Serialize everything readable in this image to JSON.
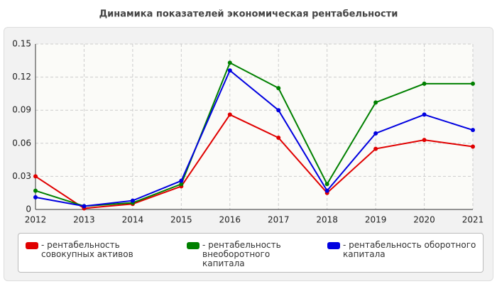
{
  "chart_data": {
    "type": "line",
    "title": "Динамика показателей экономическая рентабельности",
    "categories": [
      "2012",
      "2013",
      "2014",
      "2015",
      "2016",
      "2017",
      "2018",
      "2019",
      "2020",
      "2021"
    ],
    "series": [
      {
        "name": "- рентабельность совокупных активов",
        "color": "#e00000",
        "values": [
          0.03,
          0.001,
          0.005,
          0.021,
          0.086,
          0.065,
          0.015,
          0.055,
          0.063,
          0.057
        ]
      },
      {
        "name": "- рентабельность внеоборотного капитала",
        "color": "#008000",
        "values": [
          0.017,
          0.003,
          0.006,
          0.023,
          0.133,
          0.11,
          0.023,
          0.097,
          0.114,
          0.114
        ]
      },
      {
        "name": "- рентабельность оборотного капитала",
        "color": "#0000e0",
        "values": [
          0.011,
          0.003,
          0.008,
          0.026,
          0.126,
          0.09,
          0.017,
          0.069,
          0.086,
          0.072
        ]
      }
    ],
    "ylim": [
      0,
      0.15
    ],
    "yticks": [
      0,
      0.03,
      0.06,
      0.09,
      0.12,
      0.15
    ],
    "grid": true
  }
}
